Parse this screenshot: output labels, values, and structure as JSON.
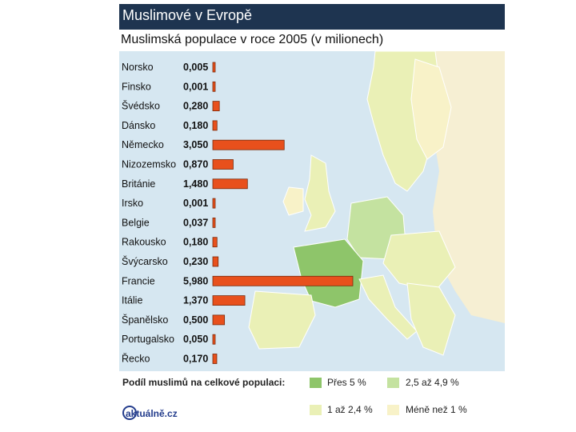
{
  "header": {
    "title": "Muslimové v Evropě",
    "subtitle": "Muslimská populace v roce 2005 (v milionech)"
  },
  "chart_data": {
    "type": "bar",
    "orientation": "horizontal",
    "title": "Muslimové v Evropě",
    "subtitle": "Muslimská populace v roce 2005 (v milionech)",
    "categories": [
      "Norsko",
      "Finsko",
      "Švédsko",
      "Dánsko",
      "Německo",
      "Nizozemsko",
      "Británie",
      "Irsko",
      "Belgie",
      "Rakousko",
      "Švýcarsko",
      "Francie",
      "Itálie",
      "Španělsko",
      "Portugalsko",
      "Řecko"
    ],
    "value_labels": [
      "0,005",
      "0,001",
      "0,280",
      "0,180",
      "3,050",
      "0,870",
      "1,480",
      "0,001",
      "0,037",
      "0,180",
      "0,230",
      "5,980",
      "1,370",
      "0,500",
      "0,050",
      "0,170"
    ],
    "values": [
      0.005,
      0.001,
      0.28,
      0.18,
      3.05,
      0.87,
      1.48,
      0.001,
      0.037,
      0.18,
      0.23,
      5.98,
      1.37,
      0.5,
      0.05,
      0.17
    ],
    "bar_color": "#e8501c",
    "xlim": [
      0,
      5.98
    ]
  },
  "map": {
    "colors": {
      "sea": "#d6e7f1",
      "over5": "#8ec56a",
      "p2_5_4_9": "#c4e2a0",
      "p1_2_4": "#eaf0b6",
      "under1": "#f8f2c8",
      "outside": "#f6efd3"
    }
  },
  "legend": {
    "title": "Podíl muslimů na celkové populaci:",
    "items": [
      {
        "label": "Přes 5 %",
        "color": "#8ec56a"
      },
      {
        "label": "2,5 až 4,9 %",
        "color": "#c4e2a0"
      },
      {
        "label": "1 až 2,4 %",
        "color": "#eaf0b6"
      },
      {
        "label": "Méně než 1 %",
        "color": "#f8f2c8"
      }
    ],
    "logo_text": "aktuálně.cz"
  }
}
